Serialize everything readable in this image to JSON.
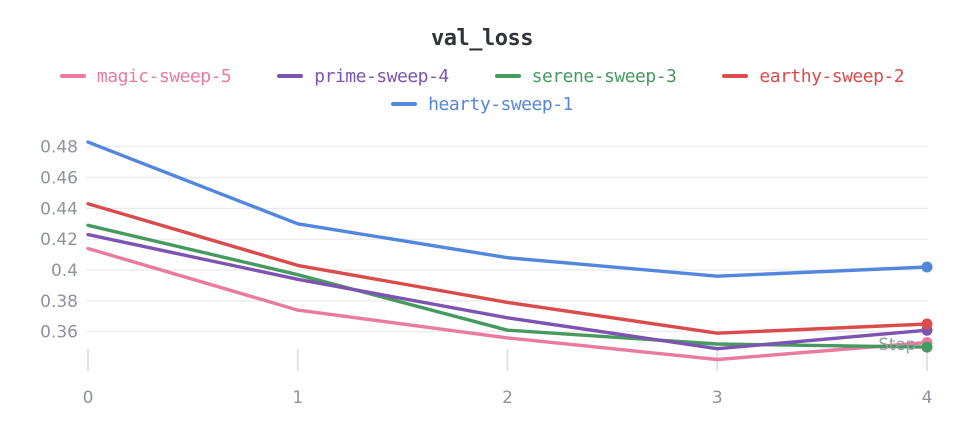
{
  "panel": {
    "title": "val_loss"
  },
  "chart_data": {
    "type": "line",
    "title": "val_loss",
    "xlabel": "Step",
    "ylabel": "",
    "x": [
      0,
      1,
      2,
      3,
      4
    ],
    "x_tick_labels": [
      "0",
      "1",
      "2",
      "3",
      "4"
    ],
    "y_ticks": [
      0.48,
      0.46,
      0.44,
      0.42,
      0.4,
      0.38,
      0.36
    ],
    "y_tick_labels": [
      "0.48",
      "0.46",
      "0.44",
      "0.42",
      "0.4",
      "0.38",
      "0.36"
    ],
    "ylim": [
      0.338,
      0.486
    ],
    "xlim": [
      0,
      4
    ],
    "grid": "horizontal",
    "legend_position": "top",
    "end_markers": true,
    "series": [
      {
        "name": "magic-sweep-5",
        "color": "#E87B9F",
        "values": [
          0.414,
          0.374,
          0.356,
          0.342,
          0.353
        ]
      },
      {
        "name": "prime-sweep-4",
        "color": "#7D54B2",
        "values": [
          0.423,
          0.394,
          0.369,
          0.349,
          0.361
        ]
      },
      {
        "name": "serene-sweep-3",
        "color": "#479A5F",
        "values": [
          0.429,
          0.397,
          0.361,
          0.352,
          0.35
        ]
      },
      {
        "name": "earthy-sweep-2",
        "color": "#DA4C4C",
        "values": [
          0.443,
          0.403,
          0.379,
          0.359,
          0.365
        ]
      },
      {
        "name": "hearty-sweep-1",
        "color": "#5387DD",
        "values": [
          0.483,
          0.43,
          0.408,
          0.396,
          0.402
        ]
      }
    ],
    "draw_order": [
      "magic-sweep-5",
      "serene-sweep-3",
      "prime-sweep-4",
      "earthy-sweep-2",
      "hearty-sweep-1"
    ],
    "colors": {
      "grid": "#e9e9eb",
      "tick": "#e0e1e3",
      "axis_label": "#8e949d",
      "title": "#2f353b"
    }
  }
}
